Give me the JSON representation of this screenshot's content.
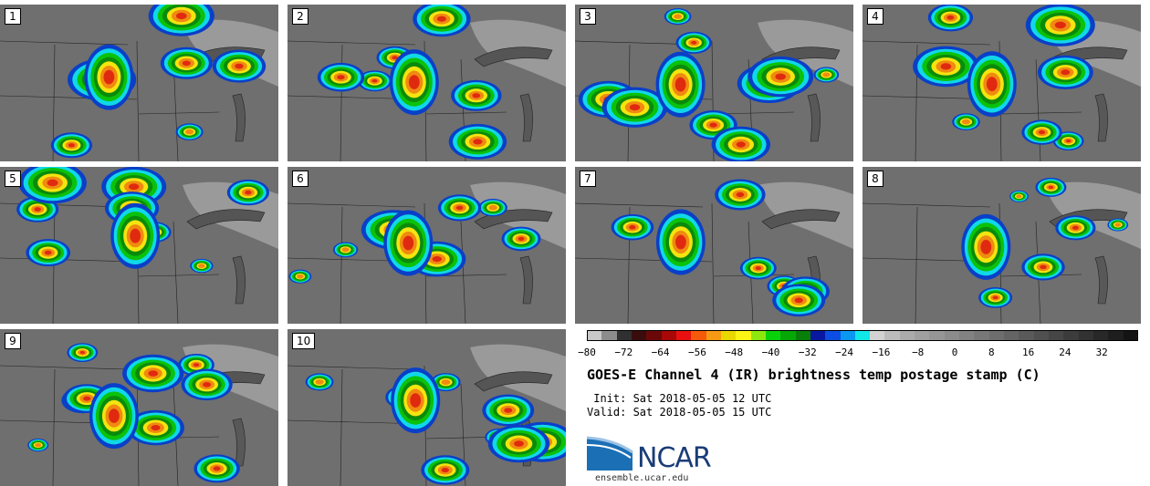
{
  "panels": [
    {
      "label": "1"
    },
    {
      "label": "2"
    },
    {
      "label": "3"
    },
    {
      "label": "4"
    },
    {
      "label": "5"
    },
    {
      "label": "6"
    },
    {
      "label": "7"
    },
    {
      "label": "8"
    },
    {
      "label": "9"
    },
    {
      "label": "10"
    }
  ],
  "colorbar": {
    "colors": [
      "#c8c8c8",
      "#8c8c8c",
      "#303030",
      "#3a0c0c",
      "#6a0808",
      "#a80808",
      "#e81010",
      "#f55a0a",
      "#f59a12",
      "#e8d800",
      "#fbf415",
      "#8ee80f",
      "#0ad20a",
      "#06a806",
      "#087f08",
      "#0818a0",
      "#0c4ee4",
      "#0a98f0",
      "#10e8e8",
      "#d2d2d2",
      "#bcbcbc",
      "#ababab",
      "#a0a0a0",
      "#969696",
      "#8c8c8c",
      "#828282",
      "#787878",
      "#6e6e6e",
      "#646464",
      "#5a5a5a",
      "#505050",
      "#464646",
      "#3c3c3c",
      "#323232",
      "#282828",
      "#1e1e1e",
      "#141414"
    ],
    "ticks": [
      "−80",
      "−72",
      "−64",
      "−56",
      "−48",
      "−40",
      "−32",
      "−24",
      "−16",
      "−8",
      "0",
      "8",
      "16",
      "24",
      "32"
    ]
  },
  "title": "GOES-E Channel 4 (IR) brightness temp postage stamp (C)",
  "init": " Init: Sat 2018-05-05 12 UTC",
  "valid": "Valid: Sat 2018-05-05 15 UTC",
  "logo": {
    "text": "NCAR",
    "site": "ensemble.ucar.edu",
    "color": "#1b3c78"
  }
}
